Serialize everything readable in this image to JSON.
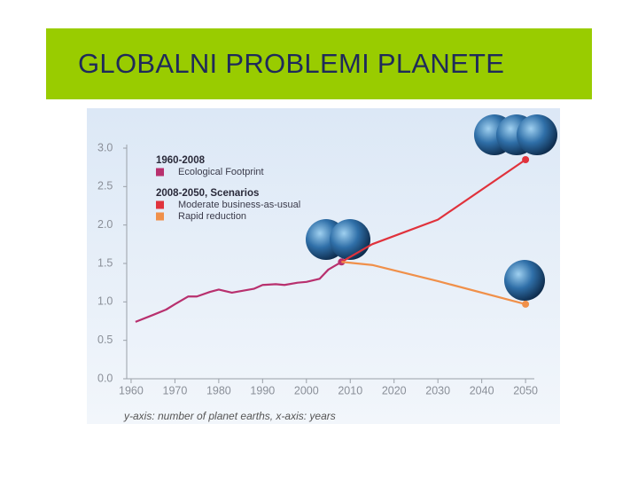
{
  "slide_title": "GLOBALNI PROBLEMI PLANETE",
  "chart_data": {
    "type": "line",
    "caption": "y-axis: number of planet earths, x-axis: years",
    "legend_headings": [
      "1960-2008",
      "2008-2050, Scenarios"
    ],
    "series": [
      {
        "name": "Ecological Footprint",
        "color": "#b8306e",
        "x": [
          1961,
          1965,
          1968,
          1970,
          1973,
          1975,
          1978,
          1980,
          1983,
          1985,
          1988,
          1990,
          1993,
          1995,
          1998,
          2000,
          2003,
          2005,
          2008
        ],
        "values": [
          0.74,
          0.83,
          0.9,
          0.97,
          1.07,
          1.07,
          1.13,
          1.16,
          1.12,
          1.14,
          1.17,
          1.22,
          1.23,
          1.22,
          1.25,
          1.26,
          1.3,
          1.42,
          1.52
        ]
      },
      {
        "name": "Moderate business-as-usual",
        "color": "#e0323c",
        "x": [
          2008,
          2015,
          2030,
          2050
        ],
        "values": [
          1.52,
          1.75,
          2.07,
          2.85
        ]
      },
      {
        "name": "Rapid reduction",
        "color": "#f0904a",
        "x": [
          2008,
          2015,
          2030,
          2050
        ],
        "values": [
          1.52,
          1.48,
          1.27,
          0.97
        ]
      }
    ],
    "xlim": [
      1959,
      2052
    ],
    "ylim": [
      0,
      3
    ],
    "xticks": [
      1960,
      1970,
      1980,
      1990,
      2000,
      2010,
      2020,
      2030,
      2040,
      2050
    ],
    "yticks": [
      {
        "value": 0,
        "label": "0.0"
      },
      0.5,
      {
        "value": 1,
        "label": "1.0"
      },
      1.5,
      {
        "value": 2,
        "label": "2.0"
      },
      2.5,
      {
        "value": 3,
        "label": "3.0"
      }
    ]
  }
}
